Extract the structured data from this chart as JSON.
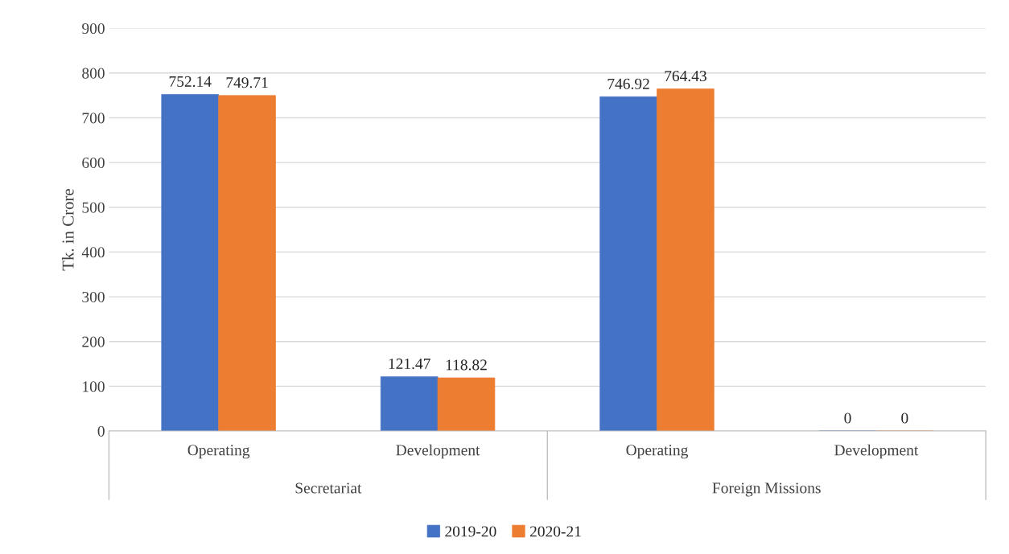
{
  "chart_data": {
    "type": "bar",
    "ylabel": "Tk. in Crore",
    "categories": [
      "Operating",
      "Development",
      "Operating",
      "Development"
    ],
    "series": [
      {
        "name": "2019-20",
        "color": "#4472c4",
        "values": [
          752.14,
          121.47,
          746.92,
          0
        ]
      },
      {
        "name": "2020-21",
        "color": "#ed7d31",
        "values": [
          749.71,
          118.82,
          764.43,
          0
        ]
      }
    ],
    "annotations": [
      "Secretariat",
      "Foreign Missions"
    ],
    "ylim": [
      0,
      900
    ],
    "yticks": [
      0,
      100,
      200,
      300,
      400,
      500,
      600,
      700,
      800,
      900
    ],
    "grid": "y",
    "legend": "bottom",
    "data_labels": true
  }
}
